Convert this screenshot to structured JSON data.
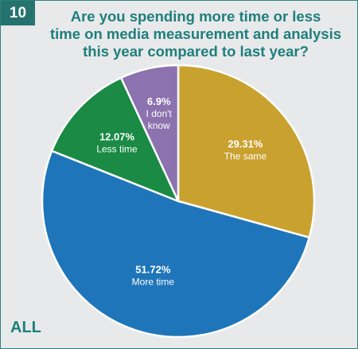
{
  "badge": "10",
  "title_lines": [
    "Are you spending more time or less",
    "time on media measurement and analysis",
    "this year compared to last year?"
  ],
  "footer": "ALL",
  "colors": {
    "same": "#c9a12f",
    "more": "#1f75b9",
    "less": "#1a8a45",
    "dont_know": "#8c72ae",
    "accent": "#1f7f7b"
  },
  "chart_data": {
    "type": "pie",
    "slices": [
      {
        "key": "same",
        "value": 29.31,
        "pct_label": "29.31%",
        "label_lines": [
          "The same"
        ]
      },
      {
        "key": "more",
        "value": 51.72,
        "pct_label": "51.72%",
        "label_lines": [
          "More time"
        ]
      },
      {
        "key": "less",
        "value": 12.07,
        "pct_label": "12.07%",
        "label_lines": [
          "Less time"
        ]
      },
      {
        "key": "dont_know",
        "value": 6.9,
        "pct_label": "6.9%",
        "label_lines": [
          "I don't",
          "know"
        ]
      }
    ]
  }
}
